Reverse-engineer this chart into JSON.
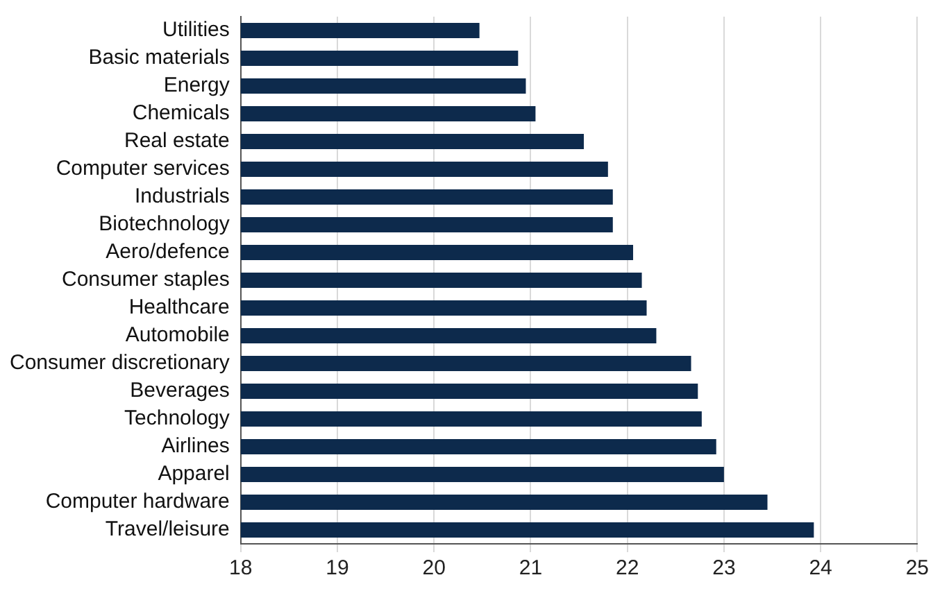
{
  "chart_data": {
    "type": "bar",
    "orientation": "horizontal",
    "categories": [
      "Utilities",
      "Basic materials",
      "Energy",
      "Chemicals",
      "Real estate",
      "Computer services",
      "Industrials",
      "Biotechnology",
      "Aero/defence",
      "Consumer staples",
      "Healthcare",
      "Automobile",
      "Consumer discretionary",
      "Beverages",
      "Technology",
      "Airlines",
      "Apparel",
      "Computer hardware",
      "Travel/leisure"
    ],
    "values": [
      20.47,
      20.87,
      20.95,
      21.05,
      21.55,
      21.8,
      21.85,
      21.85,
      22.06,
      22.15,
      22.2,
      22.3,
      22.66,
      22.73,
      22.77,
      22.92,
      23.0,
      23.45,
      23.93
    ],
    "color": "#0d2a4c",
    "xlim": [
      18,
      25
    ],
    "xticks": [
      18,
      19,
      20,
      21,
      22,
      23,
      24,
      25
    ],
    "grid": "x",
    "legend": false
  }
}
